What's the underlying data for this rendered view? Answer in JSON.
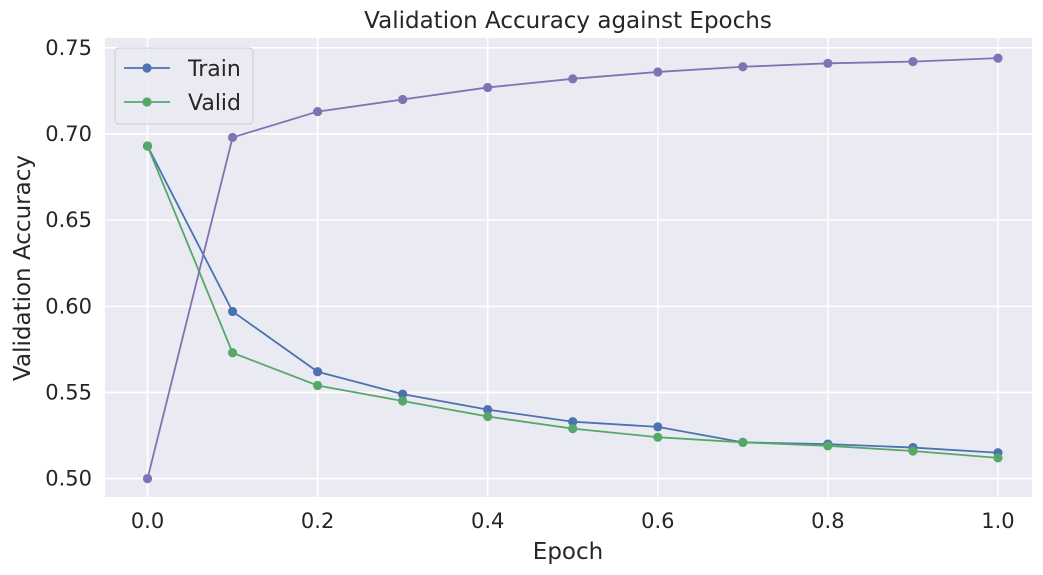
{
  "chart_data": {
    "type": "line",
    "title": "Validation Accuracy against Epochs",
    "xlabel": "Epoch",
    "ylabel": "Validation Accuracy",
    "xlim": [
      -0.05,
      1.04
    ],
    "ylim": [
      0.4893,
      0.7557
    ],
    "x_ticks": [
      0.0,
      0.2,
      0.4,
      0.6,
      0.8,
      1.0
    ],
    "x_tick_labels": [
      "0.0",
      "0.2",
      "0.4",
      "0.6",
      "0.8",
      "1.0"
    ],
    "y_ticks": [
      0.5,
      0.55,
      0.6,
      0.65,
      0.7,
      0.75
    ],
    "y_tick_labels": [
      "0.50",
      "0.55",
      "0.60",
      "0.65",
      "0.70",
      "0.75"
    ],
    "grid": true,
    "legend_position": "top-left",
    "x": [
      0.0,
      0.1,
      0.2,
      0.3,
      0.4,
      0.5,
      0.6,
      0.7,
      0.8,
      0.9,
      1.0
    ],
    "series": [
      {
        "name": "Train",
        "color": "#4c72b0",
        "in_legend": true,
        "values": [
          0.693,
          0.597,
          0.562,
          0.549,
          0.54,
          0.533,
          0.53,
          0.521,
          0.52,
          0.518,
          0.515
        ]
      },
      {
        "name": "Valid",
        "color": "#55a868",
        "in_legend": true,
        "values": [
          0.693,
          0.573,
          0.554,
          0.545,
          0.536,
          0.529,
          0.524,
          0.521,
          0.519,
          0.516,
          0.512
        ]
      },
      {
        "name": "",
        "color": "#8172b3",
        "in_legend": false,
        "values": [
          0.5,
          0.698,
          0.713,
          0.72,
          0.727,
          0.732,
          0.736,
          0.739,
          0.741,
          0.742,
          0.744
        ]
      }
    ]
  }
}
